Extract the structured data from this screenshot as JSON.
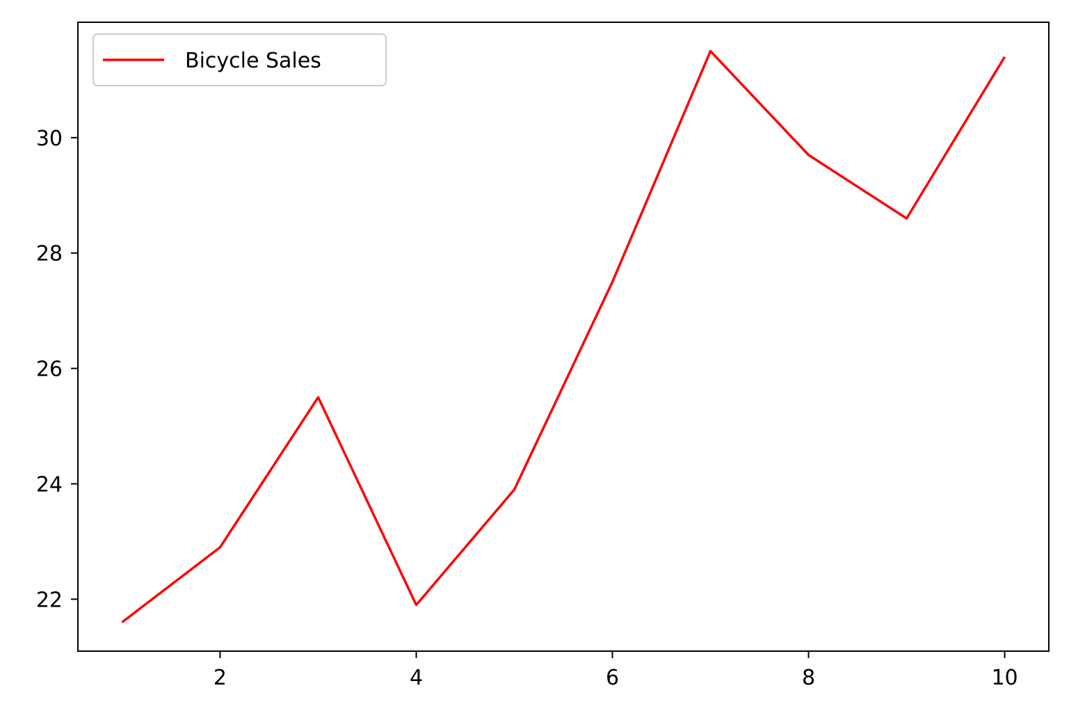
{
  "chart_data": {
    "type": "line",
    "x": [
      1,
      2,
      3,
      4,
      5,
      6,
      7,
      8,
      9,
      10
    ],
    "series": [
      {
        "name": "Bicycle Sales",
        "color": "#ff0000",
        "values": [
          21.6,
          22.9,
          25.5,
          21.9,
          23.9,
          27.5,
          31.5,
          29.7,
          28.6,
          31.4
        ]
      }
    ],
    "xlim": [
      0.55,
      10.45
    ],
    "ylim": [
      21.1,
      32.0
    ],
    "x_ticks": [
      2,
      4,
      6,
      8,
      10
    ],
    "y_ticks": [
      22,
      24,
      26,
      28,
      30
    ],
    "title": "",
    "xlabel": "",
    "ylabel": "",
    "grid": false,
    "legend_position": "upper left"
  }
}
